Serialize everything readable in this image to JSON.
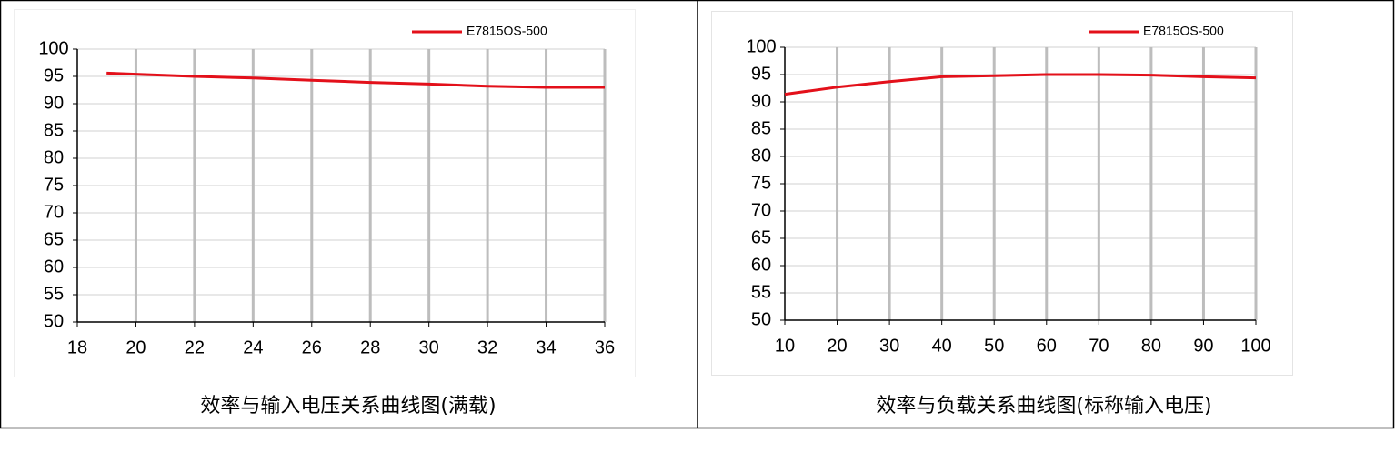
{
  "chart_data": [
    {
      "type": "line",
      "title": "效率与输入电压关系曲线图(满载)",
      "x": [
        19,
        20,
        22,
        24,
        26,
        28,
        30,
        32,
        33,
        34,
        36
      ],
      "series": [
        {
          "name": "E7815OS-500",
          "color": "#e3101a",
          "values": [
            95.6,
            95.4,
            95.0,
            94.7,
            94.3,
            93.9,
            93.6,
            93.2,
            93.1,
            93.0,
            93.0
          ]
        }
      ],
      "xlim": [
        18,
        36
      ],
      "xticks": [
        18,
        20,
        22,
        24,
        26,
        28,
        30,
        32,
        34,
        36
      ],
      "ylim": [
        50,
        100
      ],
      "yticks": [
        50,
        55,
        60,
        65,
        70,
        75,
        80,
        85,
        90,
        95,
        100
      ],
      "grid": true,
      "legend": "top"
    },
    {
      "type": "line",
      "title": "效率与负载关系曲线图(标称输入电压)",
      "x": [
        10,
        20,
        30,
        40,
        50,
        60,
        70,
        80,
        90,
        100
      ],
      "series": [
        {
          "name": "E7815OS-500",
          "color": "#e3101a",
          "values": [
            91.4,
            92.7,
            93.7,
            94.6,
            94.8,
            95.0,
            95.0,
            94.9,
            94.6,
            94.4
          ]
        }
      ],
      "xlim": [
        10,
        100
      ],
      "xticks": [
        10,
        20,
        30,
        40,
        50,
        60,
        70,
        80,
        90,
        100
      ],
      "ylim": [
        50,
        100
      ],
      "yticks": [
        50,
        55,
        60,
        65,
        70,
        75,
        80,
        85,
        90,
        95,
        100
      ],
      "grid": true,
      "legend": "top"
    }
  ]
}
